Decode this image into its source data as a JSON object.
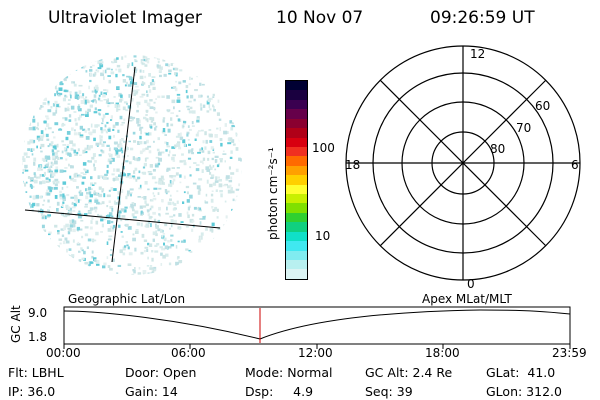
{
  "header": {
    "instrument": "Ultraviolet Imager",
    "date": "10 Nov 07",
    "time": "09:26:59 UT"
  },
  "colorbar": {
    "unit_label": "photon cm⁻²s⁻¹",
    "ticks": [
      "100",
      "10"
    ],
    "colors": [
      "#000033",
      "#1a0040",
      "#3a0050",
      "#66004a",
      "#8a0030",
      "#b00018",
      "#d80010",
      "#f03020",
      "#ff6a00",
      "#ffa000",
      "#ffd000",
      "#ffff30",
      "#c8f000",
      "#80e000",
      "#30d030",
      "#10d080",
      "#10e0c8",
      "#40e8f0",
      "#80ecf0",
      "#b8f0f0",
      "#dcf4f4"
    ]
  },
  "polar_plot": {
    "mlt_labels": {
      "top": "12",
      "left": "18",
      "right": "6",
      "bottom": "0"
    },
    "lat_labels": [
      "60",
      "70",
      "80"
    ]
  },
  "timeline": {
    "y_axis_label": "GC Alt",
    "y_ticks": [
      "9.0",
      "1.8"
    ],
    "left_label": "Geographic Lat/Lon",
    "right_label": "Apex  MLat/MLT",
    "x_ticks": [
      "00:00",
      "06:00",
      "12:00",
      "18:00",
      "23:59"
    ],
    "marker_color": "#cc0000"
  },
  "info": {
    "flt": "Flt: LBHL",
    "ip": "IP: 36.0",
    "door": "Door: Open",
    "gain": "Gain: 14",
    "mode": "Mode: Normal",
    "dsp": "Dsp:     4.9",
    "gcalt": "GC Alt: 2.4 Re",
    "seq": "Seq: 39",
    "glat": "GLat:  41.0",
    "glon": "GLon: 312.0"
  }
}
